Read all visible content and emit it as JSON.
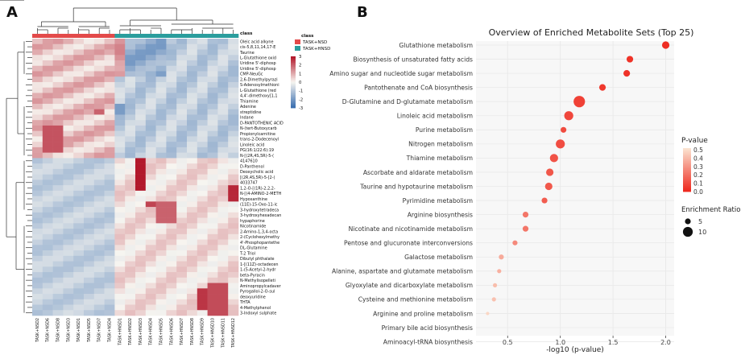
{
  "colors": {
    "heat_low": "#3b6fb0",
    "heat_mid": "#f7f5f0",
    "heat_high": "#b2182b",
    "group_red": "#e34a4a",
    "group_teal": "#2a9d9d",
    "dot_low": "#fbe2cf",
    "dot_high": "#ee2a20",
    "grid": "#e9e9e9",
    "panel": "#f7f7f7"
  },
  "chart_data": [
    {
      "panel_label": "A",
      "type": "heatmap",
      "column_groups": [
        {
          "name": "TASK+NSD",
          "count": 8
        },
        {
          "name": "TASK+HNSD",
          "count": 12
        }
      ],
      "column_labels": [
        "TASK+NSD2",
        "TASK+NSD6",
        "TASK+NSD8",
        "TASK+NSD3",
        "TASK+NSD1",
        "TASK+NSD5",
        "TASK+NSD7",
        "TASK+NSD4",
        "TASK+HNSD1",
        "TASK+HNSD2",
        "TASK+HNSD3",
        "TASK+HNSD4",
        "TASK+HNSD5",
        "TASK+HNSD6",
        "TASK+HNSD7",
        "TASK+HNSD8",
        "TASK+HNSD9",
        "TASK+HNSD10",
        "TASK+HNSD11",
        "TASK+HNSD12"
      ],
      "row_labels": [
        "Oleic acid alkyne",
        "cis-5,8,11,14,17-E",
        "Taurine",
        "L-Glutathione oxid",
        "Uridine 5'-diphosp",
        "Uridine 5'-diphosp",
        "CMP-NeuGc",
        "2,6-Dimethylpyrazi",
        "S-Adenosylmethioni",
        "L-Glutathione (red",
        "4,4'-dimethoxy[1,1",
        "Thiamine",
        "Adenine",
        "streptidine",
        "Indane",
        "D-PANTOTHENIC ACID",
        "N-(tert-Butoxycarb",
        "Propionylcarnitine",
        "trans-2-Dodecenoyl",
        "Linoleic acid",
        "PG(16:1/22:6):19",
        "N-[(2R,4S,5R)-5-(",
        "4147610",
        "D-Panthenol",
        "Deoxycholic acid",
        "[(2R,4S,5R)-5-[2-(",
        "4033747",
        "1,2-O-[(1R)-2,2,2-",
        "N-[(4-AMINO-2-METH",
        "Hypoxanthine",
        "(11E)-15-Oxo-11-ic",
        "3-hydroxytetradeca",
        "3-hydroxyhexadecan",
        "hypaphorine",
        "Nicotinamide",
        "2-Amino-1,3,4-octa",
        "2-(Cyclohexylmethy",
        "4'-Phosphopantethe",
        "DL-Glutamine",
        "T-2 Triol",
        "Dibutyl phthalate",
        "1-[(11Z)-octadecen",
        "1-(5-Acetyl-2-hydr",
        "beta-Pyracin",
        "N-Methylisopelleti",
        "Aminopropylcadaver",
        "Pyrogallol-2-O-sul",
        "deoxyuridine",
        "THTA",
        "4-Methylphenol",
        "3-Indoxyl sulphate"
      ],
      "legend_title": "class",
      "legend_items": [
        "TASK+NSD",
        "TASK+HNSD"
      ],
      "scale_ticks": [
        "3",
        "2",
        "1",
        "0",
        "-1",
        "-2",
        "-3"
      ],
      "value_range": [
        -3,
        3
      ]
    },
    {
      "panel_label": "B",
      "type": "scatter",
      "title": "Overview of Enriched Metabolite Sets (Top 25)",
      "xlabel": "-log10 (p-value)",
      "xlim": [
        0.2,
        2.08
      ],
      "xticks": [
        0.5,
        1.0,
        1.5,
        2.0
      ],
      "xtick_labels": [
        "0.5",
        "1.0",
        "1.5",
        "2.0"
      ],
      "categories": [
        "Glutathione metabolism",
        "Biosynthesis of unsaturated fatty acids",
        "Amino sugar and nucleotide sugar metabolism",
        "Pantothenate and CoA biosynthesis",
        "D-Glutamine and D-glutamate metabolism",
        "Linoleic acid metabolism",
        "Purine metabolism",
        "Nitrogen metabolism",
        "Thiamine metabolism",
        "Ascorbate and aldarate metabolism",
        "Taurine and hypotaurine metabolism",
        "Pyrimidine metabolism",
        "Arginine biosynthesis",
        "Nicotinate and nicotinamide metabolism",
        "Pentose and glucuronate interconversions",
        "Galactose metabolism",
        "Alanine, aspartate and glutamate metabolism",
        "Glyoxylate and dicarboxylate metabolism",
        "Cysteine and methionine metabolism",
        "Arginine and proline metabolism",
        "Primary bile acid biosynthesis",
        "Aminoacyl-tRNA biosynthesis"
      ],
      "x": [
        2.0,
        1.66,
        1.63,
        1.4,
        1.18,
        1.08,
        1.03,
        1.0,
        0.94,
        0.9,
        0.89,
        0.85,
        0.67,
        0.67,
        0.57,
        0.44,
        0.42,
        0.38,
        0.37,
        0.31,
        null,
        null
      ],
      "p_value": [
        0.01,
        0.022,
        0.023,
        0.04,
        0.066,
        0.083,
        0.093,
        0.1,
        0.115,
        0.126,
        0.129,
        0.141,
        0.214,
        0.214,
        0.269,
        0.363,
        0.38,
        0.417,
        0.427,
        0.49,
        null,
        null
      ],
      "enrichment_ratio": [
        7,
        6,
        6,
        6,
        12,
        9,
        5,
        9,
        8,
        7,
        7,
        5,
        5,
        5,
        4,
        4,
        3,
        3,
        3,
        2,
        null,
        null
      ],
      "color_legend_title": "P-value",
      "color_ticks": [
        0.5,
        0.4,
        0.3,
        0.2,
        0.1,
        0.0
      ],
      "color_tick_labels": [
        "0.5",
        "0.4",
        "0.3",
        "0.2",
        "0.1",
        "0.0"
      ],
      "size_legend_title": "Enrichment Ratio",
      "size_legend": [
        5,
        10
      ],
      "size_legend_labels": [
        "5",
        "10"
      ]
    }
  ]
}
